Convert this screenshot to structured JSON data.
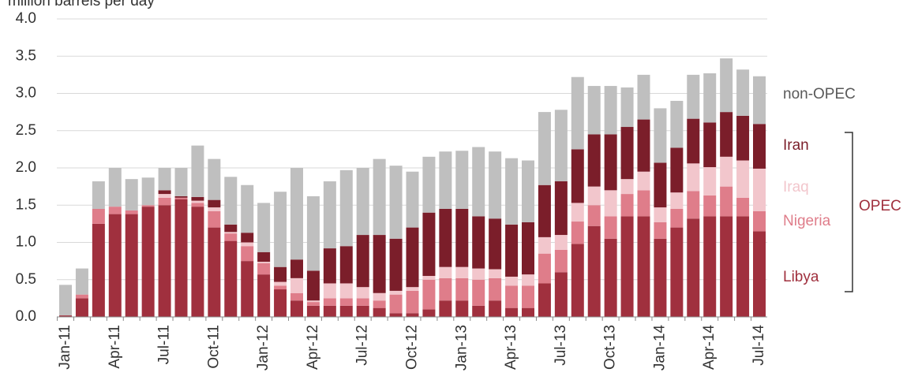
{
  "chart_data": {
    "type": "stacked_bar",
    "y_label": "million barrels per day",
    "categories": [
      "Jan-11",
      null,
      null,
      "Apr-11",
      null,
      null,
      "Jul-11",
      null,
      null,
      "Oct-11",
      null,
      null,
      "Jan-12",
      null,
      null,
      "Apr-12",
      null,
      null,
      "Jul-12",
      null,
      null,
      "Oct-12",
      null,
      null,
      "Jan-13",
      null,
      null,
      "Apr-13",
      null,
      null,
      "Jul-13",
      null,
      null,
      "Oct-13",
      null,
      null,
      "Jan-14",
      null,
      null,
      "Apr-14",
      null,
      null,
      "Jul-14"
    ],
    "series": [
      {
        "name": "Libya",
        "color": "#a0303e",
        "values": [
          0.02,
          0.25,
          1.25,
          1.38,
          1.38,
          1.48,
          1.5,
          1.58,
          1.48,
          1.2,
          1.02,
          0.75,
          0.57,
          0.37,
          0.22,
          0.15,
          0.15,
          0.15,
          0.15,
          0.12,
          0.05,
          0.05,
          0.1,
          0.22,
          0.22,
          0.15,
          0.22,
          0.12,
          0.12,
          0.45,
          0.6,
          0.98,
          1.22,
          1.05,
          1.35,
          1.35,
          1.05,
          1.2,
          1.32,
          1.35,
          1.35,
          1.35,
          1.15
        ]
      },
      {
        "name": "Nigeria",
        "color": "#df7d8a",
        "values": [
          0,
          0.05,
          0.2,
          0.1,
          0.05,
          0.02,
          0.1,
          0.02,
          0.05,
          0.22,
          0.1,
          0.2,
          0.15,
          0.05,
          0.1,
          0.05,
          0.1,
          0.1,
          0.1,
          0.1,
          0.25,
          0.3,
          0.4,
          0.3,
          0.3,
          0.35,
          0.3,
          0.3,
          0.3,
          0.4,
          0.3,
          0.3,
          0.28,
          0.3,
          0.3,
          0.35,
          0.22,
          0.25,
          0.37,
          0.28,
          0.4,
          0.25,
          0.27
        ]
      },
      {
        "name": "Iraq",
        "color": "#f2c6cc",
        "values": [
          0,
          0,
          0,
          0,
          0,
          0,
          0.05,
          0,
          0.03,
          0.05,
          0.02,
          0.05,
          0.02,
          0.05,
          0.2,
          0.02,
          0.2,
          0.2,
          0.15,
          0.1,
          0.05,
          0.05,
          0.05,
          0.15,
          0.15,
          0.15,
          0.12,
          0.12,
          0.15,
          0.22,
          0.2,
          0.25,
          0.25,
          0.35,
          0.2,
          0.25,
          0.2,
          0.22,
          0.37,
          0.38,
          0.4,
          0.5,
          0.57
        ]
      },
      {
        "name": "Iran",
        "color": "#7b1e2a",
        "values": [
          0,
          0,
          0,
          0,
          0,
          0,
          0.05,
          0.02,
          0.05,
          0.1,
          0.1,
          0.13,
          0.13,
          0.2,
          0.25,
          0.4,
          0.47,
          0.5,
          0.7,
          0.78,
          0.7,
          0.8,
          0.85,
          0.78,
          0.78,
          0.7,
          0.68,
          0.7,
          0.7,
          0.7,
          0.72,
          0.72,
          0.7,
          0.75,
          0.7,
          0.7,
          0.6,
          0.6,
          0.6,
          0.6,
          0.6,
          0.6,
          0.6
        ]
      },
      {
        "name": "non-OPEC",
        "color": "#bfbfbf",
        "values": [
          0.41,
          0.35,
          0.37,
          0.52,
          0.42,
          0.37,
          0.3,
          0.38,
          0.69,
          0.55,
          0.64,
          0.64,
          0.66,
          1.01,
          1.23,
          1.0,
          0.9,
          1.02,
          0.9,
          1.02,
          0.98,
          0.75,
          0.75,
          0.77,
          0.78,
          0.93,
          0.9,
          0.89,
          0.83,
          0.98,
          0.96,
          0.97,
          0.65,
          0.65,
          0.53,
          0.6,
          0.73,
          0.63,
          0.59,
          0.66,
          0.72,
          0.62,
          0.64
        ]
      }
    ],
    "group_label": "OPEC",
    "ylim": [
      0,
      4
    ],
    "yticks": [
      {
        "value": 0,
        "label": "0.0"
      },
      0.5,
      {
        "value": 1,
        "label": "1.0"
      },
      1.5,
      {
        "value": 2,
        "label": "2.0"
      },
      2.5,
      {
        "value": 3,
        "label": "3.0"
      },
      3.5,
      {
        "value": 4,
        "label": "4.0"
      }
    ],
    "grid": true
  }
}
